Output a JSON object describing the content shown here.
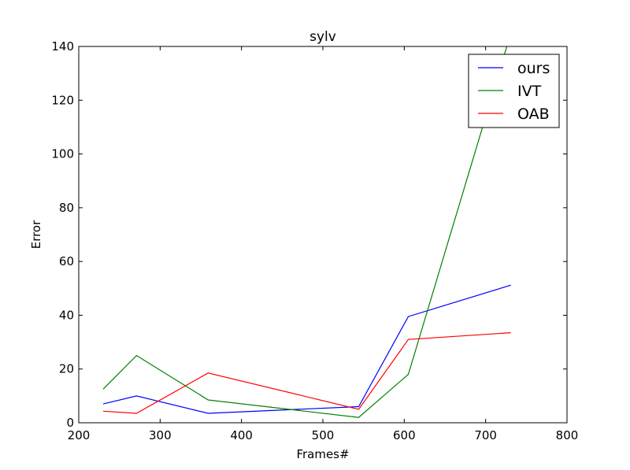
{
  "chart_data": {
    "type": "line",
    "title": "sylv",
    "xlabel": "Frames#",
    "ylabel": "Error",
    "xlim": [
      200,
      800
    ],
    "ylim": [
      0,
      140
    ],
    "xticks": [
      200,
      300,
      400,
      500,
      600,
      700,
      800
    ],
    "yticks": [
      0,
      20,
      40,
      60,
      80,
      100,
      120,
      140
    ],
    "x": [
      230,
      271,
      359,
      544,
      605,
      731
    ],
    "legend_position": "top-right",
    "series": [
      {
        "name": "ours",
        "color": "#0000ff",
        "values": [
          7.0,
          10.0,
          3.5,
          6.0,
          39.5,
          51.2
        ]
      },
      {
        "name": "IVT",
        "color": "#008000",
        "values": [
          12.5,
          25.0,
          8.5,
          2.0,
          18.0,
          145.0
        ]
      },
      {
        "name": "OAB",
        "color": "#ff0000",
        "values": [
          4.3,
          3.5,
          18.5,
          5.0,
          31.0,
          33.5
        ]
      }
    ]
  }
}
